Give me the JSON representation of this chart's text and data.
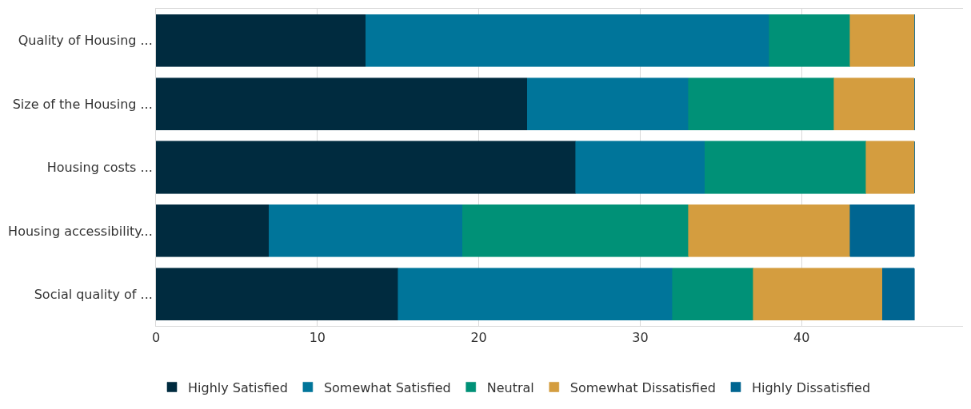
{
  "chart_data": {
    "type": "bar",
    "orientation": "horizontal",
    "stacked": true,
    "categories": [
      "Quality of Housing ...",
      "Size of the Housing ...",
      "Housing costs ...",
      "Housing accessibility...",
      "Social quality of ..."
    ],
    "series": [
      {
        "name": "Highly Satisfied",
        "color": "#002b3f",
        "values": [
          13,
          23,
          26,
          7,
          15
        ]
      },
      {
        "name": "Somewhat Satisfied",
        "color": "#00759a",
        "values": [
          25,
          10,
          8,
          12,
          17
        ]
      },
      {
        "name": "Neutral",
        "color": "#009177",
        "values": [
          5,
          9,
          10,
          14,
          5
        ]
      },
      {
        "name": "Somewhat Dissatisfied",
        "color": "#d49d3f",
        "values": [
          4,
          5,
          3,
          10,
          8
        ]
      },
      {
        "name": "Highly Dissatisfied",
        "color": "#006591",
        "values": [
          0,
          0,
          0,
          4,
          2
        ]
      }
    ],
    "xlim": [
      0,
      50
    ],
    "xticks": [
      0,
      10,
      20,
      30,
      40
    ],
    "grid": "x",
    "legend": "bottom"
  }
}
